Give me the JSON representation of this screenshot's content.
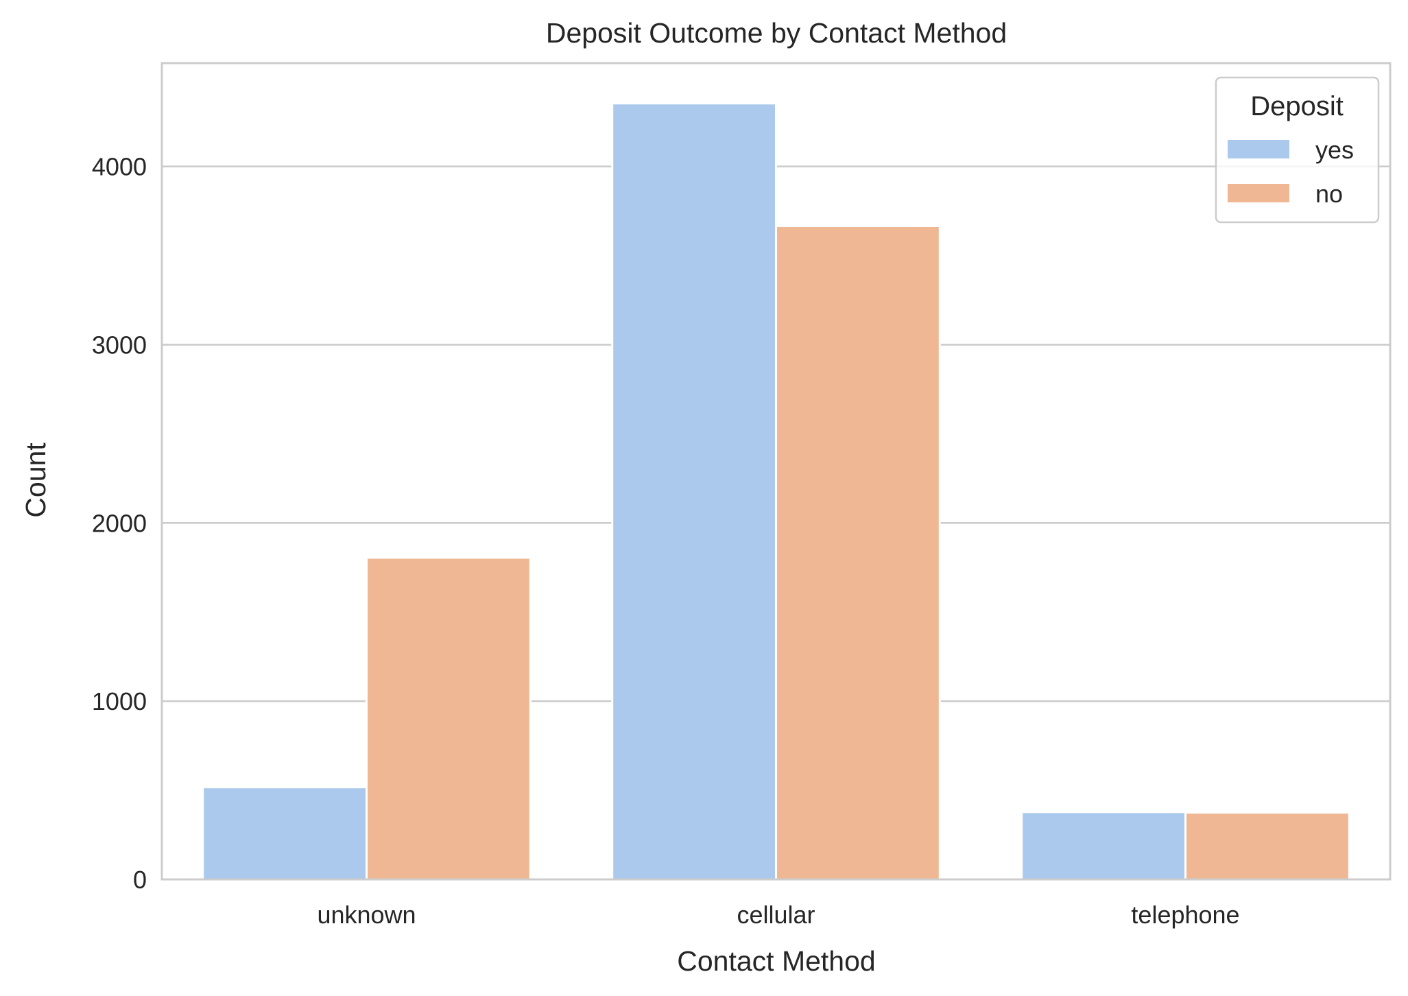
{
  "chart_data": {
    "type": "bar",
    "title": "Deposit Outcome by Contact Method",
    "xlabel": "Contact Method",
    "ylabel": "Count",
    "categories": [
      "unknown",
      "cellular",
      "telephone"
    ],
    "series": [
      {
        "name": "yes",
        "values": [
          517,
          4354,
          378
        ],
        "color": "#abc9ed"
      },
      {
        "name": "no",
        "values": [
          1805,
          3666,
          375
        ],
        "color": "#f0b794"
      }
    ],
    "ylim": [
      0,
      4580
    ],
    "yticks": [
      0,
      1000,
      2000,
      3000,
      4000
    ],
    "ytick_labels": [
      "0",
      "1000",
      "2000",
      "3000",
      "4000"
    ],
    "grid": "horizontal",
    "legend": {
      "title": "Deposit",
      "placement": "top-right"
    }
  }
}
